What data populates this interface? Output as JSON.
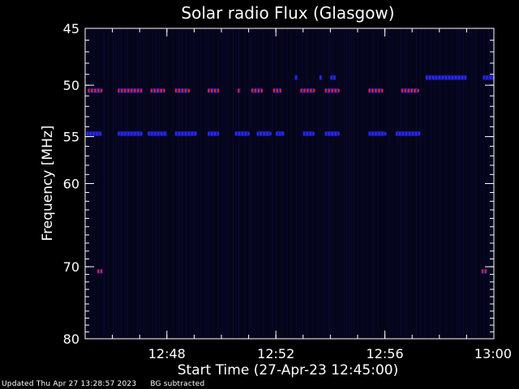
{
  "chart_data": {
    "type": "heatmap",
    "title": "Solar radio Flux (Glasgow)",
    "xlabel": "Start Time (27-Apr-23 12:45:00)",
    "ylabel": "Frequency [MHz]",
    "xlim_minutes": [
      0,
      15
    ],
    "ylim_mhz": [
      45,
      80
    ],
    "y_scale": "log",
    "y_direction": "inverted",
    "x_ticks": [
      {
        "minute": 3,
        "label": "12:48"
      },
      {
        "minute": 7,
        "label": "12:52"
      },
      {
        "minute": 11,
        "label": "12:56"
      },
      {
        "minute": 15,
        "label": "13:00"
      }
    ],
    "y_tick_values": [
      45,
      50,
      55,
      60,
      70,
      80
    ],
    "colors": {
      "background": "#000000",
      "plot_background": "#05051a",
      "axis": "#ffffff",
      "low_intensity": "#1010a0",
      "mid_intensity": "#2a2aff",
      "high_intensity": "#ff2020"
    },
    "interference_bands": [
      {
        "frequency_mhz": 50.5,
        "intensity": "high",
        "segments": [
          [
            0.1,
            0.6
          ],
          [
            1.2,
            2.1
          ],
          [
            2.4,
            2.9
          ],
          [
            3.3,
            3.8
          ],
          [
            4.5,
            4.9
          ],
          [
            5.6,
            5.7
          ],
          [
            6.1,
            6.5
          ],
          [
            6.9,
            7.2
          ],
          [
            7.9,
            8.4
          ],
          [
            8.8,
            9.3
          ],
          [
            10.4,
            10.9
          ],
          [
            11.6,
            12.2
          ]
        ]
      },
      {
        "frequency_mhz": 54.7,
        "intensity": "mid",
        "segments": [
          [
            0.05,
            0.6
          ],
          [
            1.2,
            2.1
          ],
          [
            2.3,
            3.0
          ],
          [
            3.3,
            4.1
          ],
          [
            4.5,
            4.9
          ],
          [
            5.5,
            6.0
          ],
          [
            6.3,
            6.8
          ],
          [
            7.0,
            7.3
          ],
          [
            8.0,
            8.4
          ],
          [
            8.8,
            9.3
          ],
          [
            10.4,
            11.0
          ],
          [
            11.4,
            12.3
          ]
        ]
      },
      {
        "frequency_mhz": 49.3,
        "intensity": "mid",
        "segments": [
          [
            7.7,
            7.8
          ],
          [
            8.6,
            8.7
          ],
          [
            9.0,
            9.2
          ],
          [
            12.5,
            14.0
          ],
          [
            14.6,
            15.0
          ]
        ]
      },
      {
        "frequency_mhz": 70.6,
        "intensity": "high",
        "segments": [
          [
            0.45,
            0.65
          ],
          [
            14.55,
            14.75
          ]
        ]
      }
    ]
  },
  "footer": {
    "updated": "Updated Thu Apr 27 13:28:57 2023",
    "note": "BG subtracted"
  }
}
